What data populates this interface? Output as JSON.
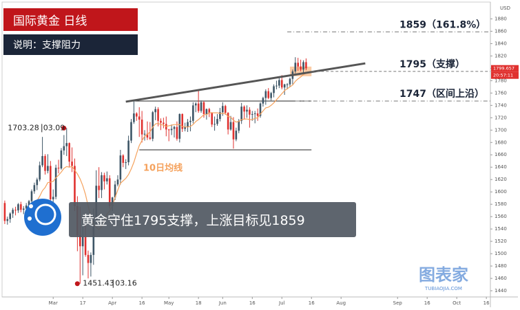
{
  "header": {
    "title": "国际黄金  日线",
    "subtitle": "说明：支撑阻力"
  },
  "banner": "黄金守住1795支撑，上涨目标见1859",
  "watermark": {
    "name": "图表家",
    "site": "TUBIAOJIA.COM"
  },
  "chart_data": {
    "type": "candlestick",
    "currency": "USD",
    "up_color": "#3d5566",
    "down_color": "#e0312f",
    "candles": [
      [
        1582,
        1586,
        1548,
        1553
      ],
      [
        1553,
        1560,
        1547,
        1556
      ],
      [
        1556,
        1567,
        1550,
        1565
      ],
      [
        1565,
        1574,
        1558,
        1571
      ],
      [
        1571,
        1576,
        1562,
        1570
      ],
      [
        1570,
        1582,
        1566,
        1580
      ],
      [
        1580,
        1584,
        1567,
        1571
      ],
      [
        1571,
        1577,
        1564,
        1573
      ],
      [
        1573,
        1582,
        1570,
        1578
      ],
      [
        1578,
        1587,
        1574,
        1585
      ],
      [
        1585,
        1604,
        1582,
        1601
      ],
      [
        1601,
        1615,
        1597,
        1611
      ],
      [
        1611,
        1623,
        1603,
        1620
      ],
      [
        1620,
        1649,
        1617,
        1643
      ],
      [
        1643,
        1689,
        1640,
        1658
      ],
      [
        1658,
        1661,
        1628,
        1634
      ],
      [
        1634,
        1661,
        1630,
        1642
      ],
      [
        1642,
        1650,
        1566,
        1588
      ],
      [
        1588,
        1604,
        1572,
        1592
      ],
      [
        1592,
        1644,
        1588,
        1639
      ],
      [
        1639,
        1652,
        1630,
        1638
      ],
      [
        1638,
        1671,
        1636,
        1667
      ],
      [
        1667,
        1692,
        1660,
        1674
      ],
      [
        1674,
        1703.28,
        1658,
        1679
      ],
      [
        1679,
        1680,
        1640,
        1649
      ],
      [
        1649,
        1672,
        1632,
        1642
      ],
      [
        1642,
        1654,
        1569,
        1577
      ],
      [
        1577,
        1593,
        1504,
        1530
      ],
      [
        1530,
        1576,
        1451.43,
        1512
      ],
      [
        1512,
        1548,
        1465,
        1527
      ],
      [
        1527,
        1548,
        1495,
        1498
      ],
      [
        1498,
        1505,
        1460,
        1485
      ],
      [
        1485,
        1502,
        1463,
        1498
      ],
      [
        1498,
        1573,
        1482,
        1554
      ],
      [
        1554,
        1635,
        1545,
        1610
      ],
      [
        1610,
        1640,
        1590,
        1603
      ],
      [
        1603,
        1632,
        1590,
        1627
      ],
      [
        1627,
        1631,
        1604,
        1617
      ],
      [
        1617,
        1633,
        1612,
        1622
      ],
      [
        1622,
        1627,
        1573,
        1577
      ],
      [
        1577,
        1592,
        1569,
        1591
      ],
      [
        1591,
        1618,
        1587,
        1612
      ],
      [
        1612,
        1627,
        1609,
        1620
      ],
      [
        1620,
        1668,
        1612,
        1659
      ],
      [
        1659,
        1661,
        1640,
        1647
      ],
      [
        1647,
        1653,
        1637,
        1648
      ],
      [
        1648,
        1691,
        1643,
        1683
      ],
      [
        1683,
        1718,
        1679,
        1713
      ],
      [
        1713,
        1747,
        1710,
        1727
      ],
      [
        1727,
        1729,
        1715,
        1722
      ],
      [
        1722,
        1737,
        1689,
        1717
      ],
      [
        1717,
        1731,
        1680,
        1693
      ],
      [
        1693,
        1700,
        1683,
        1694
      ],
      [
        1694,
        1714,
        1684,
        1688
      ],
      [
        1688,
        1713,
        1684,
        1686
      ],
      [
        1686,
        1731,
        1682,
        1729
      ],
      [
        1729,
        1738,
        1716,
        1734
      ],
      [
        1734,
        1737,
        1706,
        1715
      ],
      [
        1715,
        1719,
        1700,
        1712
      ],
      [
        1712,
        1720,
        1703,
        1710
      ],
      [
        1710,
        1722,
        1690,
        1701
      ],
      [
        1701,
        1702,
        1682,
        1700
      ],
      [
        1700,
        1709,
        1692,
        1702
      ],
      [
        1702,
        1707,
        1688,
        1705
      ],
      [
        1705,
        1714,
        1683,
        1686
      ],
      [
        1686,
        1727,
        1680,
        1726
      ],
      [
        1726,
        1727,
        1697,
        1702
      ],
      [
        1702,
        1712,
        1698,
        1705
      ],
      [
        1705,
        1718,
        1697,
        1713
      ],
      [
        1713,
        1722,
        1698,
        1715
      ],
      [
        1715,
        1745,
        1711,
        1740
      ],
      [
        1740,
        1745,
        1729,
        1743
      ],
      [
        1743,
        1765,
        1728,
        1731
      ],
      [
        1731,
        1748,
        1728,
        1745
      ],
      [
        1745,
        1747,
        1720,
        1726
      ],
      [
        1726,
        1735,
        1717,
        1734
      ],
      [
        1734,
        1736,
        1721,
        1728
      ],
      [
        1728,
        1729,
        1705,
        1709
      ],
      [
        1709,
        1722,
        1699,
        1710
      ],
      [
        1710,
        1726,
        1707,
        1718
      ],
      [
        1718,
        1736,
        1714,
        1729
      ],
      [
        1729,
        1745,
        1723,
        1739
      ],
      [
        1739,
        1741,
        1725,
        1728
      ],
      [
        1728,
        1729,
        1693,
        1701
      ],
      [
        1701,
        1723,
        1699,
        1713
      ],
      [
        1713,
        1721,
        1670,
        1685
      ],
      [
        1685,
        1704,
        1682,
        1699
      ],
      [
        1699,
        1718,
        1695,
        1715
      ],
      [
        1715,
        1744,
        1710,
        1738
      ],
      [
        1738,
        1740,
        1717,
        1730
      ],
      [
        1730,
        1740,
        1720,
        1733
      ],
      [
        1733,
        1737,
        1704,
        1725
      ],
      [
        1725,
        1731,
        1715,
        1726
      ],
      [
        1726,
        1731,
        1711,
        1727
      ],
      [
        1727,
        1735,
        1715,
        1723
      ],
      [
        1723,
        1745,
        1720,
        1743
      ],
      [
        1743,
        1754,
        1738,
        1752
      ],
      [
        1752,
        1766,
        1741,
        1763
      ],
      [
        1763,
        1768,
        1750,
        1752
      ],
      [
        1752,
        1762,
        1748,
        1760
      ],
      [
        1760,
        1774,
        1753,
        1771
      ],
      [
        1771,
        1780,
        1766,
        1772
      ],
      [
        1772,
        1785,
        1768,
        1781
      ],
      [
        1781,
        1789,
        1766,
        1769
      ],
      [
        1769,
        1775,
        1757,
        1774
      ],
      [
        1774,
        1776,
        1766,
        1774
      ],
      [
        1774,
        1785,
        1770,
        1783
      ],
      [
        1783,
        1798,
        1774,
        1795
      ],
      [
        1795,
        1818,
        1792,
        1809
      ],
      [
        1809,
        1817,
        1796,
        1803
      ],
      [
        1803,
        1814,
        1795,
        1798
      ],
      [
        1798,
        1813,
        1793,
        1810
      ],
      [
        1810,
        1816,
        1797,
        1800
      ]
    ],
    "ma": {
      "name": "10日均线",
      "color": "#f5a25d",
      "values": [
        null,
        null,
        null,
        null,
        null,
        null,
        null,
        null,
        null,
        1570,
        1575,
        1581,
        1586,
        1593,
        1602,
        1607,
        1615,
        1616,
        1617,
        1623,
        1627,
        1632,
        1638,
        1641,
        1640,
        1641,
        1635,
        1629,
        1621,
        1610,
        1596,
        1577,
        1560,
        1547,
        1543,
        1539,
        1544,
        1553,
        1564,
        1569,
        1578,
        1591,
        1603,
        1614,
        1618,
        1622,
        1628,
        1637,
        1648,
        1662,
        1675,
        1683,
        1690,
        1693,
        1697,
        1705,
        1710,
        1711,
        1709,
        1708,
        1706,
        1707,
        1708,
        1709,
        1709,
        1709,
        1706,
        1705,
        1705,
        1706,
        1709,
        1714,
        1717,
        1721,
        1725,
        1725,
        1728,
        1728,
        1728,
        1728,
        1727,
        1727,
        1727,
        1722,
        1721,
        1716,
        1713,
        1714,
        1717,
        1718,
        1718,
        1717,
        1717,
        1719,
        1720,
        1726,
        1731,
        1736,
        1737,
        1740,
        1744,
        1749,
        1754,
        1759,
        1764,
        1767,
        1770,
        1773,
        1779,
        1783,
        1786,
        1790,
        1792
      ]
    },
    "ylim": [
      1430,
      1905
    ],
    "yticks": [
      1440,
      1460,
      1480,
      1500,
      1520,
      1540,
      1560,
      1580,
      1600,
      1620,
      1640,
      1660,
      1680,
      1700,
      1720,
      1740,
      1760,
      1780,
      1800,
      1820,
      1840,
      1860,
      1880
    ],
    "xlim": [
      -1,
      180.5
    ],
    "xticks": [
      {
        "value": 18,
        "label": "Mar"
      },
      {
        "value": 29,
        "label": "17"
      },
      {
        "value": 40,
        "label": "Apr"
      },
      {
        "value": 51,
        "label": "16"
      },
      {
        "value": 61,
        "label": "May"
      },
      {
        "value": 72,
        "label": "18"
      },
      {
        "value": 81,
        "label": "Jun"
      },
      {
        "value": 92,
        "label": "16"
      },
      {
        "value": 103,
        "label": "Jul"
      },
      {
        "value": 114,
        "label": "16"
      },
      {
        "value": 125,
        "label": "Aug"
      },
      {
        "value": 146,
        "label": "Sep"
      },
      {
        "value": 157,
        "label": "16"
      },
      {
        "value": 168,
        "label": "Oct"
      },
      {
        "value": 179,
        "label": "16"
      }
    ],
    "last_price": {
      "value": 1799.657,
      "time": "20:57:11"
    },
    "levels": [
      {
        "value": 1859,
        "label": "1859（161.8%）",
        "from": 105
      },
      {
        "value": 1795,
        "label": "1795（支撑）",
        "from": 114
      },
      {
        "value": 1747,
        "label": "1747（区间上沿）",
        "from": 108
      }
    ],
    "range_lines": [
      {
        "value": 1747,
        "x": [
          45,
          114
        ]
      },
      {
        "value": 1668,
        "x": [
          50,
          114
        ]
      }
    ],
    "trendline": {
      "x": [
        45,
        134
      ],
      "y": [
        1746,
        1808
      ]
    },
    "extremes": [
      {
        "value": 1703.28,
        "date": "03.09",
        "x": 23
      },
      {
        "value": 1451.43,
        "date": "03.16",
        "x": 28
      }
    ]
  }
}
